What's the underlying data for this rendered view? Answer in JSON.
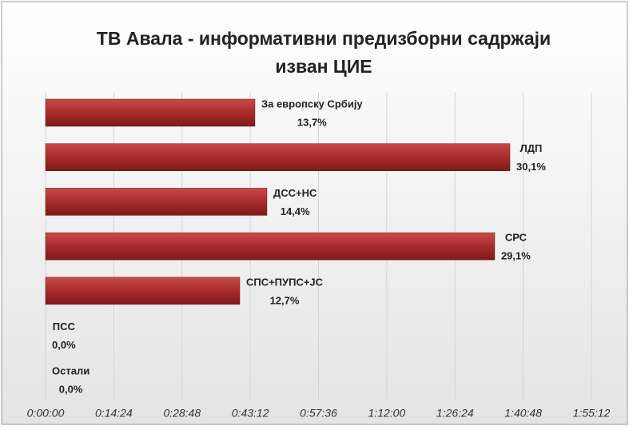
{
  "chart_data": {
    "type": "barh",
    "title": "ТВ Авала - информативни предизборни садржаји изван ЦИЕ",
    "categories": [
      "За европску Србију",
      "ЛДП",
      "ДСС+НС",
      "СРС",
      "СПС+ПУПС+ЈС",
      "ПСС",
      "Остали"
    ],
    "values": [
      2651,
      5880,
      2803,
      5687,
      2459,
      0,
      0
    ],
    "shares": [
      13.7,
      30.1,
      14.4,
      29.1,
      12.7,
      0,
      0
    ],
    "share_labels": [
      "13,7%",
      "30,1%",
      "14,4%",
      "29,1%",
      "12,7%",
      "0,0%",
      "0,0%"
    ],
    "color": "#a92b2b",
    "xlim": [
      0,
      6912
    ],
    "xticks": [
      {
        "value": 0,
        "label": "0:00:00"
      },
      {
        "value": 864,
        "label": "0:14:24"
      },
      {
        "value": 1728,
        "label": "0:28:48"
      },
      {
        "value": 2592,
        "label": "0:43:12"
      },
      {
        "value": 3456,
        "label": "0:57:36"
      },
      {
        "value": 4320,
        "label": "1:12:00"
      },
      {
        "value": 5184,
        "label": "1:26:24"
      },
      {
        "value": 6048,
        "label": "1:40:48"
      },
      {
        "value": 6912,
        "label": "1:55:12"
      }
    ],
    "grid": true
  }
}
